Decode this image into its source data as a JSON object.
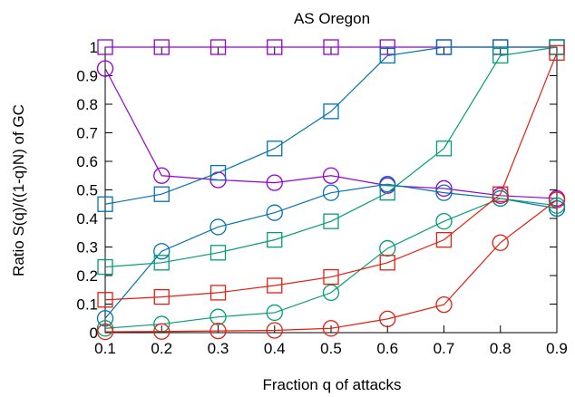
{
  "chart_data": {
    "type": "line",
    "title": "AS Oregon",
    "xlabel": "Fraction q of attacks",
    "ylabel": "Ratio S(q)/((1-q)N) of GC",
    "xlim": [
      0.1,
      0.9
    ],
    "ylim": [
      0,
      1
    ],
    "xticks": [
      "0.1",
      "0.2",
      "0.3",
      "0.4",
      "0.5",
      "0.6",
      "0.7",
      "0.8",
      "0.9"
    ],
    "yticks": [
      "0",
      "0.1",
      "0.2",
      "0.3",
      "0.4",
      "0.5",
      "0.6",
      "0.7",
      "0.8",
      "0.9",
      "1"
    ],
    "grid": false,
    "x": [
      0.1,
      0.2,
      0.3,
      0.4,
      0.5,
      0.6,
      0.7,
      0.8,
      0.9
    ],
    "series": [
      {
        "color": "#9400d3",
        "marker": "square",
        "values": [
          1.0,
          1.0,
          1.0,
          1.0,
          1.0,
          1.0,
          1.0,
          1.0,
          1.0
        ]
      },
      {
        "color": "#9400d3",
        "marker": "circle",
        "values": [
          0.925,
          0.55,
          0.535,
          0.525,
          0.55,
          0.515,
          0.505,
          0.48,
          0.47
        ]
      },
      {
        "color": "#0072b2",
        "marker": "square",
        "values": [
          0.45,
          0.485,
          0.56,
          0.645,
          0.775,
          0.97,
          1.0,
          1.0,
          1.0
        ]
      },
      {
        "color": "#0072b2",
        "marker": "circle",
        "values": [
          0.05,
          0.285,
          0.37,
          0.42,
          0.49,
          0.52,
          0.49,
          0.47,
          0.435
        ]
      },
      {
        "color": "#009e73",
        "marker": "square",
        "values": [
          0.23,
          0.245,
          0.28,
          0.325,
          0.39,
          0.49,
          0.645,
          0.97,
          1.0
        ]
      },
      {
        "color": "#009e73",
        "marker": "circle",
        "values": [
          0.015,
          0.03,
          0.055,
          0.07,
          0.14,
          0.295,
          0.39,
          0.47,
          0.445
        ]
      },
      {
        "color": "#e51e10",
        "marker": "square",
        "values": [
          0.115,
          0.125,
          0.14,
          0.165,
          0.195,
          0.245,
          0.325,
          0.485,
          0.98
        ]
      },
      {
        "color": "#e51e10",
        "marker": "circle",
        "values": [
          0.003,
          0.004,
          0.006,
          0.008,
          0.015,
          0.048,
          0.098,
          0.315,
          0.465
        ]
      }
    ]
  }
}
